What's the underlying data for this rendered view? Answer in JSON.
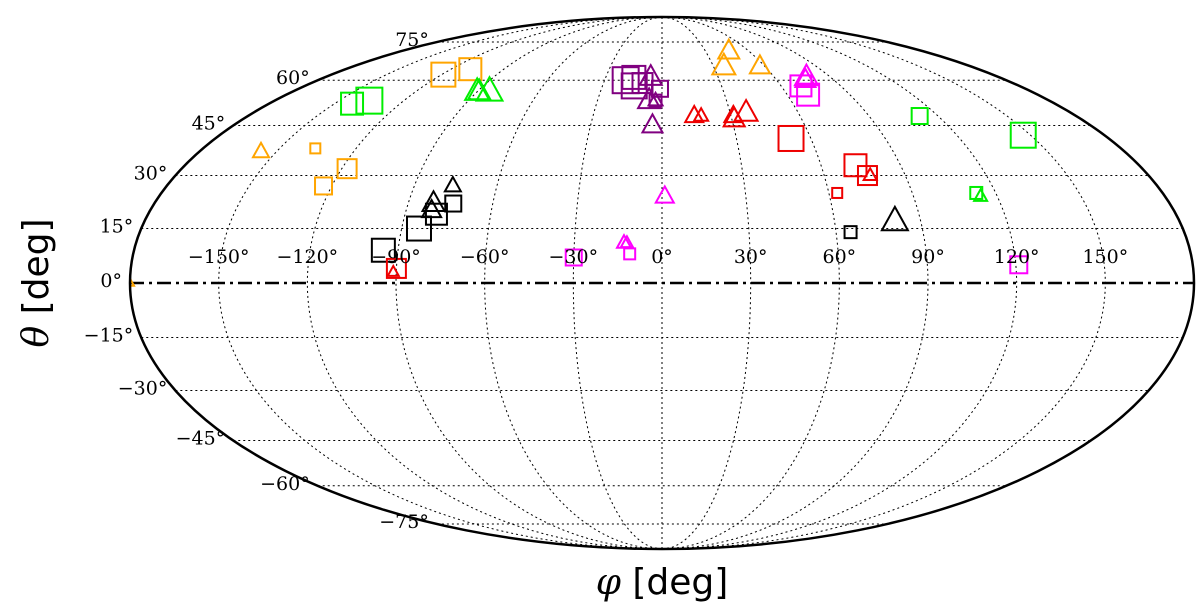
{
  "chart_data": {
    "type": "scatter",
    "projection": "mollweide",
    "xlabel_symbol": "φ",
    "xlabel_unit": "[deg]",
    "ylabel_symbol": "θ",
    "ylabel_unit": "[deg]",
    "xlim": [
      -180,
      180
    ],
    "ylim": [
      -90,
      90
    ],
    "grid": true,
    "x_ticks": [
      -150,
      -120,
      -90,
      -60,
      -30,
      0,
      30,
      60,
      90,
      120,
      150
    ],
    "x_tick_labels": [
      "−150°",
      "−120°",
      "−90°",
      "−60°",
      "−30°",
      "0°",
      "30°",
      "60°",
      "90°",
      "120°",
      "150°"
    ],
    "y_ticks": [
      75,
      60,
      45,
      30,
      15,
      0,
      -15,
      -30,
      -45,
      -60,
      -75
    ],
    "y_tick_labels": [
      "75°",
      "60°",
      "45°",
      "30°",
      "15°",
      "0°",
      "−15°",
      "−30°",
      "−45°",
      "−60°",
      "−75°"
    ],
    "reference_line": {
      "theta": 0,
      "style": "dash-dot"
    },
    "colors": {
      "orange": "#FFA500",
      "green": "#00EE00",
      "black": "#000000",
      "purple": "#800080",
      "red": "#EE0000",
      "magenta": "#FF00FF"
    },
    "series": [
      {
        "color": "orange",
        "points": [
          {
            "phi": -119,
            "theta": 62,
            "shape": "square",
            "size": 2.4
          },
          {
            "phi": -109,
            "theta": 64,
            "shape": "square",
            "size": 2.2
          },
          {
            "phi": -156,
            "theta": 37,
            "shape": "triangle",
            "size": 1.6
          },
          {
            "phi": -136,
            "theta": 38,
            "shape": "square",
            "size": 1.0
          },
          {
            "phi": -118,
            "theta": 32,
            "shape": "square",
            "size": 1.9
          },
          {
            "phi": -123,
            "theta": 27,
            "shape": "square",
            "size": 1.7
          },
          {
            "phi": -180,
            "theta": 0,
            "shape": "triangle",
            "size": 0.8
          },
          {
            "phi": 46,
            "theta": 71,
            "shape": "triangle",
            "size": 2.1
          },
          {
            "phi": 36,
            "theta": 65,
            "shape": "triangle",
            "size": 2.3
          },
          {
            "phi": 57,
            "theta": 65,
            "shape": "triangle",
            "size": 2.0
          }
        ]
      },
      {
        "color": "green",
        "points": [
          {
            "phi": -142,
            "theta": 52,
            "shape": "square",
            "size": 2.2
          },
          {
            "phi": -136,
            "theta": 53,
            "shape": "square",
            "size": 2.6
          },
          {
            "phi": -89,
            "theta": 56,
            "shape": "triangle",
            "size": 2.2
          },
          {
            "phi": -90,
            "theta": 56,
            "shape": "triangle",
            "size": 2.4
          },
          {
            "phi": -84,
            "theta": 56,
            "shape": "triangle",
            "size": 2.6
          },
          {
            "phi": 112,
            "theta": 48,
            "shape": "square",
            "size": 1.6
          },
          {
            "phi": 147,
            "theta": 42,
            "shape": "square",
            "size": 2.5
          },
          {
            "phi": 113,
            "theta": 25,
            "shape": "square",
            "size": 1.2
          },
          {
            "phi": 114,
            "theta": 24,
            "shape": "triangle",
            "size": 1.3
          }
        ]
      },
      {
        "color": "black",
        "points": [
          {
            "phi": -95,
            "theta": 9,
            "shape": "square",
            "size": 2.3
          },
          {
            "phi": -84,
            "theta": 15,
            "shape": "square",
            "size": 2.4
          },
          {
            "phi": -79,
            "theta": 19,
            "shape": "square",
            "size": 2.1
          },
          {
            "phi": -74,
            "theta": 22,
            "shape": "square",
            "size": 1.6
          },
          {
            "phi": -81,
            "theta": 22,
            "shape": "triangle",
            "size": 2.2
          },
          {
            "phi": -81,
            "theta": 20,
            "shape": "triangle",
            "size": 1.9
          },
          {
            "phi": -76,
            "theta": 27,
            "shape": "triangle",
            "size": 1.6
          },
          {
            "phi": 65,
            "theta": 14,
            "shape": "square",
            "size": 1.2
          },
          {
            "phi": 81,
            "theta": 17,
            "shape": "triangle",
            "size": 2.6
          }
        ]
      },
      {
        "color": "purple",
        "points": [
          {
            "phi": -19,
            "theta": 60,
            "shape": "square",
            "size": 2.6
          },
          {
            "phi": -15,
            "theta": 61,
            "shape": "square",
            "size": 2.3
          },
          {
            "phi": -14,
            "theta": 58,
            "shape": "square",
            "size": 2.5
          },
          {
            "phi": -10,
            "theta": 59,
            "shape": "square",
            "size": 2.0
          },
          {
            "phi": -1,
            "theta": 57,
            "shape": "square",
            "size": 1.6
          },
          {
            "phi": -3,
            "theta": 53,
            "shape": "square",
            "size": 1.2
          },
          {
            "phi": -6,
            "theta": 61,
            "shape": "triangle",
            "size": 2.2
          },
          {
            "phi": -6,
            "theta": 53,
            "shape": "triangle",
            "size": 2.2
          },
          {
            "phi": -3,
            "theta": 53,
            "shape": "triangle",
            "size": 1.4
          },
          {
            "phi": -4,
            "theta": 45,
            "shape": "triangle",
            "size": 2.0
          }
        ]
      },
      {
        "color": "red",
        "points": [
          {
            "phi": 14,
            "theta": 48,
            "shape": "triangle",
            "size": 1.8
          },
          {
            "phi": 17,
            "theta": 48,
            "shape": "triangle",
            "size": 1.4
          },
          {
            "phi": 31,
            "theta": 47,
            "shape": "triangle",
            "size": 2.1
          },
          {
            "phi": 31,
            "theta": 48,
            "shape": "triangle",
            "size": 1.8
          },
          {
            "phi": 37,
            "theta": 49,
            "shape": "triangle",
            "size": 2.3
          },
          {
            "phi": 52,
            "theta": 41,
            "shape": "square",
            "size": 2.5
          },
          {
            "phi": 73,
            "theta": 33,
            "shape": "square",
            "size": 2.2
          },
          {
            "phi": 76,
            "theta": 30,
            "shape": "square",
            "size": 1.9
          },
          {
            "phi": 77,
            "theta": 30,
            "shape": "triangle",
            "size": 1.3
          },
          {
            "phi": 63,
            "theta": 25,
            "shape": "square",
            "size": 1.0
          },
          {
            "phi": -90,
            "theta": 4,
            "shape": "square",
            "size": 1.9
          },
          {
            "phi": -91,
            "theta": 3,
            "shape": "triangle",
            "size": 1.1
          }
        ]
      },
      {
        "color": "magenta",
        "points": [
          {
            "phi": 70,
            "theta": 58,
            "shape": "square",
            "size": 2.1
          },
          {
            "phi": 70,
            "theta": 55,
            "shape": "square",
            "size": 2.2
          },
          {
            "phi": 75,
            "theta": 60,
            "shape": "triangle",
            "size": 2.0
          },
          {
            "phi": 77,
            "theta": 61,
            "shape": "triangle",
            "size": 2.3
          },
          {
            "phi": 1,
            "theta": 24,
            "shape": "triangle",
            "size": 1.8
          },
          {
            "phi": -30,
            "theta": 7,
            "shape": "square",
            "size": 1.6
          },
          {
            "phi": -13,
            "theta": 11,
            "shape": "triangle",
            "size": 1.4
          },
          {
            "phi": -12,
            "theta": 11,
            "shape": "triangle",
            "size": 1.2
          },
          {
            "phi": -11,
            "theta": 8,
            "shape": "square",
            "size": 1.1
          },
          {
            "phi": 121,
            "theta": 5,
            "shape": "square",
            "size": 1.7
          }
        ]
      }
    ]
  }
}
